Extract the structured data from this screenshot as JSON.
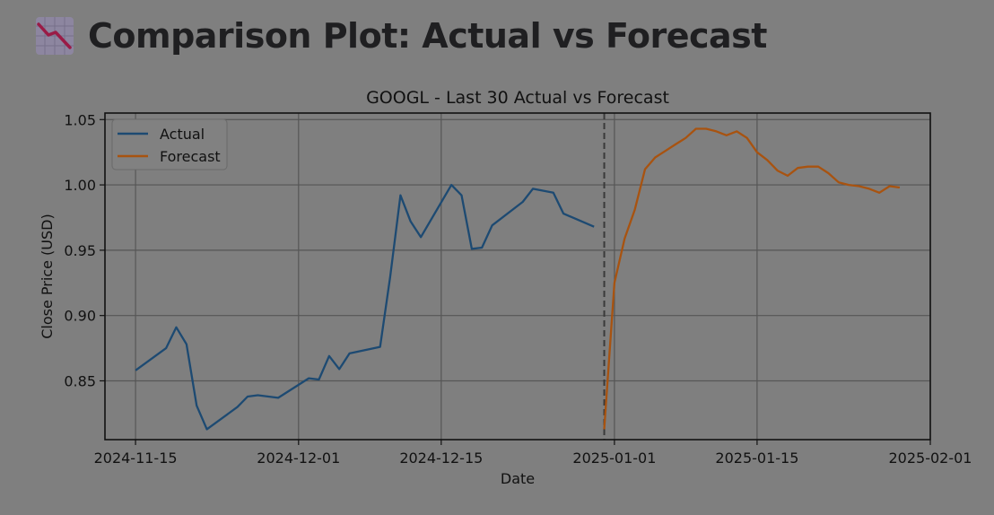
{
  "page": {
    "title": "Comparison Plot: Actual vs Forecast",
    "icon": "chart-decreasing-icon"
  },
  "colors": {
    "background": "#7f7f7f",
    "actual": "#1d4a72",
    "forecast": "#a85310",
    "grid": "#565656",
    "text": "#111111"
  },
  "chart_data": {
    "type": "line",
    "title": "GOOGL - Last 30 Actual vs Forecast",
    "xlabel": "Date",
    "ylabel": "Close Price (USD)",
    "xlim": [
      "2024-11-12",
      "2025-02-01"
    ],
    "ylim": [
      0.805,
      1.055
    ],
    "x_ticks": [
      "2024-11-15",
      "2024-12-01",
      "2024-12-15",
      "2025-01-01",
      "2025-01-15",
      "2025-02-01"
    ],
    "y_ticks": [
      0.85,
      0.9,
      0.95,
      1.0,
      1.05
    ],
    "y_tick_labels": [
      "0.85",
      "0.90",
      "0.95",
      "1.00",
      "1.05"
    ],
    "grid": true,
    "legend": "top-left",
    "vline": "2024-12-31",
    "series": [
      {
        "name": "Actual",
        "color": "#1d4a72",
        "points": [
          [
            "2024-11-15",
            0.858
          ],
          [
            "2024-11-18",
            0.875
          ],
          [
            "2024-11-19",
            0.891
          ],
          [
            "2024-11-20",
            0.878
          ],
          [
            "2024-11-21",
            0.831
          ],
          [
            "2024-11-22",
            0.813
          ],
          [
            "2024-11-25",
            0.83
          ],
          [
            "2024-11-26",
            0.838
          ],
          [
            "2024-11-27",
            0.839
          ],
          [
            "2024-11-29",
            0.837
          ],
          [
            "2024-12-02",
            0.852
          ],
          [
            "2024-12-03",
            0.851
          ],
          [
            "2024-12-04",
            0.869
          ],
          [
            "2024-12-05",
            0.859
          ],
          [
            "2024-12-06",
            0.871
          ],
          [
            "2024-12-09",
            0.876
          ],
          [
            "2024-12-10",
            0.93
          ],
          [
            "2024-12-11",
            0.992
          ],
          [
            "2024-12-12",
            0.972
          ],
          [
            "2024-12-13",
            0.96
          ],
          [
            "2024-12-16",
            1.0
          ],
          [
            "2024-12-17",
            0.992
          ],
          [
            "2024-12-18",
            0.951
          ],
          [
            "2024-12-19",
            0.952
          ],
          [
            "2024-12-20",
            0.969
          ],
          [
            "2024-12-23",
            0.987
          ],
          [
            "2024-12-24",
            0.997
          ],
          [
            "2024-12-26",
            0.994
          ],
          [
            "2024-12-27",
            0.978
          ],
          [
            "2024-12-30",
            0.968
          ]
        ]
      },
      {
        "name": "Forecast",
        "color": "#a85310",
        "points": [
          [
            "2024-12-31",
            0.813
          ],
          [
            "2025-01-01",
            0.925
          ],
          [
            "2025-01-02",
            0.959
          ],
          [
            "2025-01-03",
            0.981
          ],
          [
            "2025-01-04",
            1.012
          ],
          [
            "2025-01-05",
            1.021
          ],
          [
            "2025-01-06",
            1.026
          ],
          [
            "2025-01-07",
            1.031
          ],
          [
            "2025-01-08",
            1.036
          ],
          [
            "2025-01-09",
            1.043
          ],
          [
            "2025-01-10",
            1.043
          ],
          [
            "2025-01-11",
            1.041
          ],
          [
            "2025-01-12",
            1.038
          ],
          [
            "2025-01-13",
            1.041
          ],
          [
            "2025-01-14",
            1.036
          ],
          [
            "2025-01-15",
            1.025
          ],
          [
            "2025-01-16",
            1.019
          ],
          [
            "2025-01-17",
            1.011
          ],
          [
            "2025-01-18",
            1.007
          ],
          [
            "2025-01-19",
            1.013
          ],
          [
            "2025-01-20",
            1.014
          ],
          [
            "2025-01-21",
            1.014
          ],
          [
            "2025-01-22",
            1.009
          ],
          [
            "2025-01-23",
            1.002
          ],
          [
            "2025-01-24",
            1.0
          ],
          [
            "2025-01-25",
            0.999
          ],
          [
            "2025-01-26",
            0.997
          ],
          [
            "2025-01-27",
            0.994
          ],
          [
            "2025-01-28",
            0.999
          ],
          [
            "2025-01-29",
            0.998
          ]
        ]
      }
    ]
  }
}
